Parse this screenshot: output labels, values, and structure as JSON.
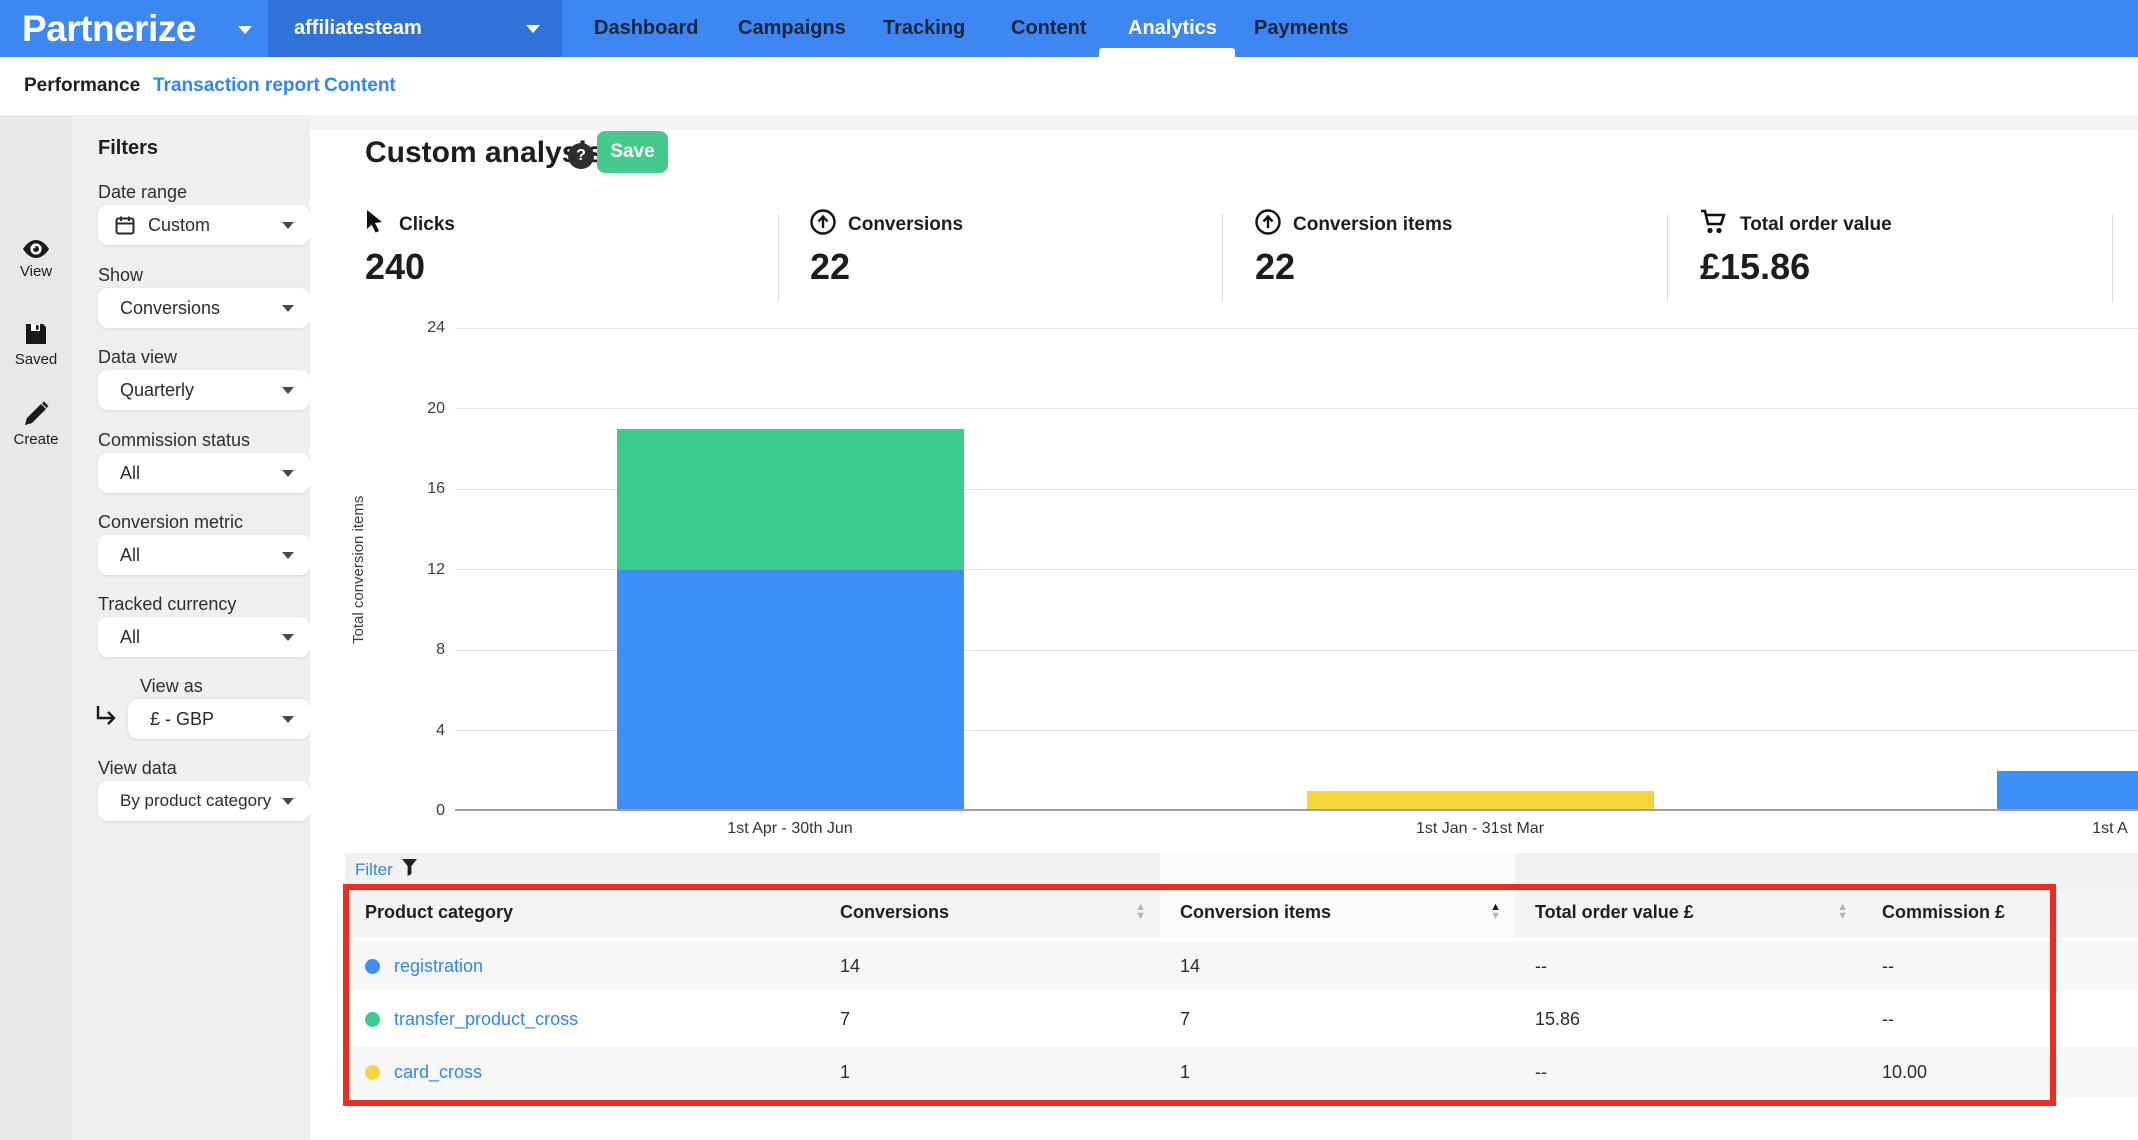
{
  "topbar": {
    "logo": "Partnerize",
    "account": "affiliatesteam",
    "nav": [
      {
        "label": "Dashboard",
        "active": false
      },
      {
        "label": "Campaigns",
        "active": false
      },
      {
        "label": "Tracking",
        "active": false
      },
      {
        "label": "Content",
        "active": false
      },
      {
        "label": "Analytics",
        "active": true
      },
      {
        "label": "Payments",
        "active": false
      }
    ]
  },
  "subnav": [
    {
      "label": "Performance",
      "active": true
    },
    {
      "label": "Transaction report",
      "active": false
    },
    {
      "label": "Content",
      "active": false
    }
  ],
  "rail": [
    {
      "label": "View",
      "icon": "eye-icon"
    },
    {
      "label": "Saved",
      "icon": "floppy-icon"
    },
    {
      "label": "Create",
      "icon": "pencil-icon"
    }
  ],
  "filters": {
    "title": "Filters",
    "groups": [
      {
        "label": "Date range",
        "value": "Custom",
        "icon": "calendar-icon"
      },
      {
        "label": "Show",
        "value": "Conversions"
      },
      {
        "label": "Data view",
        "value": "Quarterly"
      },
      {
        "label": "Commission status",
        "value": "All"
      },
      {
        "label": "Conversion metric",
        "value": "All"
      },
      {
        "label": "Tracked currency",
        "value": "All"
      },
      {
        "label": "View as",
        "value": "£ - GBP",
        "indented": true
      },
      {
        "label": "View data",
        "value": "By product category"
      }
    ]
  },
  "main": {
    "title": "Custom analysis",
    "help_glyph": "?",
    "save_label": "Save"
  },
  "stats": [
    {
      "icon": "cursor-icon",
      "label": "Clicks",
      "value": "240"
    },
    {
      "icon": "circle-up-icon",
      "label": "Conversions",
      "value": "22"
    },
    {
      "icon": "circle-up-icon",
      "label": "Conversion items",
      "value": "22"
    },
    {
      "icon": "cart-icon",
      "label": "Total order value",
      "value": "£15.86"
    }
  ],
  "chart_data": {
    "type": "bar",
    "stacked": true,
    "title": "",
    "xlabel": "",
    "ylabel": "Total conversion items",
    "ylim": [
      0,
      24
    ],
    "yticks": [
      0,
      4,
      8,
      12,
      16,
      20,
      24
    ],
    "grid": true,
    "legend": "none",
    "categories": [
      "1st Apr - 30th Jun",
      "1st Jan - 31st Mar",
      "1st A"
    ],
    "series": [
      {
        "name": "registration",
        "color": "#3e8ef7",
        "values": [
          12,
          0,
          2
        ]
      },
      {
        "name": "transfer_product_cross",
        "color": "#3bcd8f",
        "values": [
          7,
          0,
          0
        ]
      },
      {
        "name": "card_cross",
        "color": "#f8d53d",
        "values": [
          0,
          1,
          0
        ]
      }
    ]
  },
  "table": {
    "filter_label": "Filter",
    "columns": [
      {
        "label": "Product category",
        "sort": "none"
      },
      {
        "label": "Conversions",
        "sort": "inactive"
      },
      {
        "label": "Conversion items",
        "sort": "asc"
      },
      {
        "label": "Total order value £",
        "sort": "inactive"
      },
      {
        "label": "Commission £",
        "sort": "none"
      }
    ],
    "rows": [
      {
        "dot_color": "#3e8ef7",
        "name": "registration",
        "conversions": "14",
        "conversion_items": "14",
        "total_order_value": "--",
        "commission": "--"
      },
      {
        "dot_color": "#3bcd8f",
        "name": "transfer_product_cross",
        "conversions": "7",
        "conversion_items": "7",
        "total_order_value": "15.86",
        "commission": "--"
      },
      {
        "dot_color": "#f8d53d",
        "name": "card_cross",
        "conversions": "1",
        "conversion_items": "1",
        "total_order_value": "--",
        "commission": "10.00"
      }
    ]
  },
  "colors": {
    "topbar_blue": "#3d87f2",
    "account_blue": "#2e72da",
    "link_blue": "#2f86f6",
    "save_green": "#46c98c",
    "bar_blue": "#3e8ef7",
    "bar_green": "#3bcd8f",
    "bar_yellow": "#f8d53d",
    "annotation_red": "#ee2b1e"
  }
}
